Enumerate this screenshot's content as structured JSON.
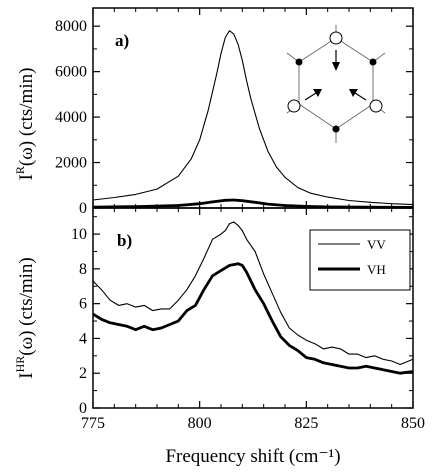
{
  "chart_data": [
    {
      "panel_label": "a)",
      "type": "line",
      "xlabel": "Frequency shift (cm⁻¹)",
      "ylabel_main": "I",
      "ylabel_sup": "R",
      "ylabel_rest": "(ω) (cts/min)",
      "xlim": [
        775,
        850
      ],
      "ylim": [
        0,
        8800
      ],
      "yticks": [
        0,
        2000,
        4000,
        6000,
        8000
      ],
      "series": [
        {
          "style": "thin",
          "x": [
            775,
            780,
            785,
            790,
            795,
            798,
            800,
            802,
            804,
            805,
            806,
            807,
            808,
            809,
            810,
            811,
            812,
            814,
            816,
            818,
            820,
            823,
            826,
            830,
            835,
            840,
            845,
            850
          ],
          "y": [
            350,
            460,
            600,
            830,
            1400,
            2150,
            3000,
            4300,
            5900,
            6800,
            7500,
            7800,
            7650,
            7200,
            6500,
            5600,
            4800,
            3500,
            2500,
            1800,
            1350,
            900,
            650,
            480,
            330,
            250,
            190,
            150
          ]
        },
        {
          "style": "thick",
          "x": [
            775,
            785,
            795,
            800,
            803,
            806,
            808,
            810,
            813,
            816,
            820,
            825,
            830,
            840,
            850
          ],
          "y": [
            40,
            60,
            110,
            190,
            270,
            340,
            350,
            320,
            250,
            170,
            110,
            70,
            50,
            35,
            25
          ]
        }
      ],
      "inset": "hexagon-mode-diagram"
    },
    {
      "panel_label": "b)",
      "type": "line",
      "xlabel": "Frequency shift (cm⁻¹)",
      "ylabel_main": "I",
      "ylabel_sup": "HR",
      "ylabel_rest": "(ω) (cts/min)",
      "xlim": [
        775,
        850
      ],
      "ylim": [
        0,
        11.5
      ],
      "yticks": [
        0,
        2,
        4,
        6,
        8,
        10
      ],
      "xticks": [
        775,
        800,
        825,
        850
      ],
      "legend_position": "top-right",
      "series": [
        {
          "name": "VV",
          "style": "thin",
          "x": [
            775,
            777,
            779,
            781,
            783,
            785,
            787,
            789,
            791,
            793,
            795,
            797,
            799,
            801,
            803,
            805,
            806,
            807,
            808,
            809,
            810,
            811,
            813,
            815,
            817,
            819,
            821,
            823,
            825,
            827,
            829,
            831,
            833,
            835,
            837,
            839,
            841,
            843,
            845,
            847,
            850
          ],
          "y": [
            7.3,
            6.8,
            6.2,
            5.9,
            6.0,
            5.8,
            5.9,
            5.6,
            5.7,
            5.7,
            6.2,
            6.8,
            7.6,
            8.6,
            9.7,
            10.0,
            10.2,
            10.6,
            10.7,
            10.5,
            10.2,
            9.7,
            9.0,
            7.7,
            6.6,
            5.5,
            4.6,
            4.2,
            3.9,
            3.7,
            3.4,
            3.5,
            3.4,
            3.1,
            3.1,
            2.9,
            3.0,
            2.8,
            2.7,
            2.5,
            2.8
          ]
        },
        {
          "name": "VH",
          "style": "thick",
          "x": [
            775,
            777,
            779,
            781,
            783,
            785,
            787,
            789,
            791,
            793,
            795,
            797,
            799,
            801,
            803,
            805,
            807,
            809,
            810,
            811,
            813,
            815,
            817,
            819,
            821,
            823,
            825,
            827,
            829,
            831,
            833,
            835,
            837,
            839,
            841,
            843,
            845,
            847,
            850
          ],
          "y": [
            5.4,
            5.1,
            4.9,
            4.8,
            4.7,
            4.5,
            4.7,
            4.5,
            4.6,
            4.8,
            5.0,
            5.6,
            5.9,
            6.8,
            7.6,
            7.9,
            8.2,
            8.3,
            8.2,
            7.8,
            6.8,
            6.0,
            5.0,
            4.1,
            3.6,
            3.3,
            2.9,
            2.8,
            2.6,
            2.5,
            2.4,
            2.3,
            2.3,
            2.4,
            2.3,
            2.2,
            2.1,
            2.0,
            2.1
          ]
        }
      ]
    }
  ]
}
